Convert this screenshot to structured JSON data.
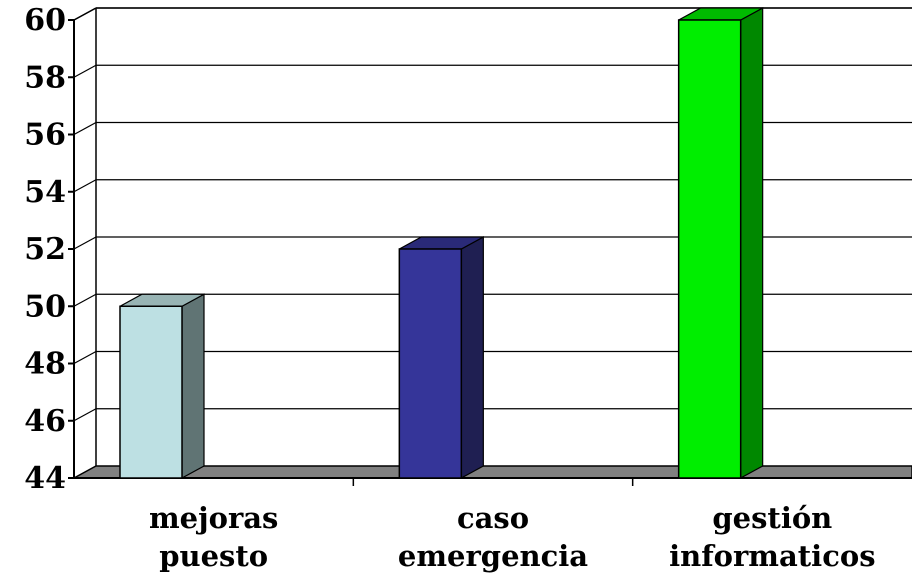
{
  "chart_data": {
    "type": "bar",
    "title": "",
    "xlabel": "",
    "ylabel": "",
    "categories": [
      [
        "mejoras",
        "puesto"
      ],
      [
        "caso",
        "emergencia"
      ],
      [
        "gestión",
        "informaticos"
      ]
    ],
    "values": [
      50,
      52,
      60
    ],
    "ylim": [
      44,
      60
    ],
    "yticks": [
      "44",
      "46",
      "48",
      "50",
      "52",
      "54",
      "56",
      "58",
      "60"
    ],
    "grid": true,
    "legend": "none",
    "style": "3d-column",
    "colors": [
      {
        "front": "#bde0e3",
        "side": "#607474",
        "top": "#98b4b4"
      },
      {
        "front": "#353599",
        "side": "#1f1f52",
        "top": "#2a2a78"
      },
      {
        "front": "#00ee00",
        "side": "#008800",
        "top": "#00bb00"
      }
    ],
    "floor_color": "#808080"
  }
}
